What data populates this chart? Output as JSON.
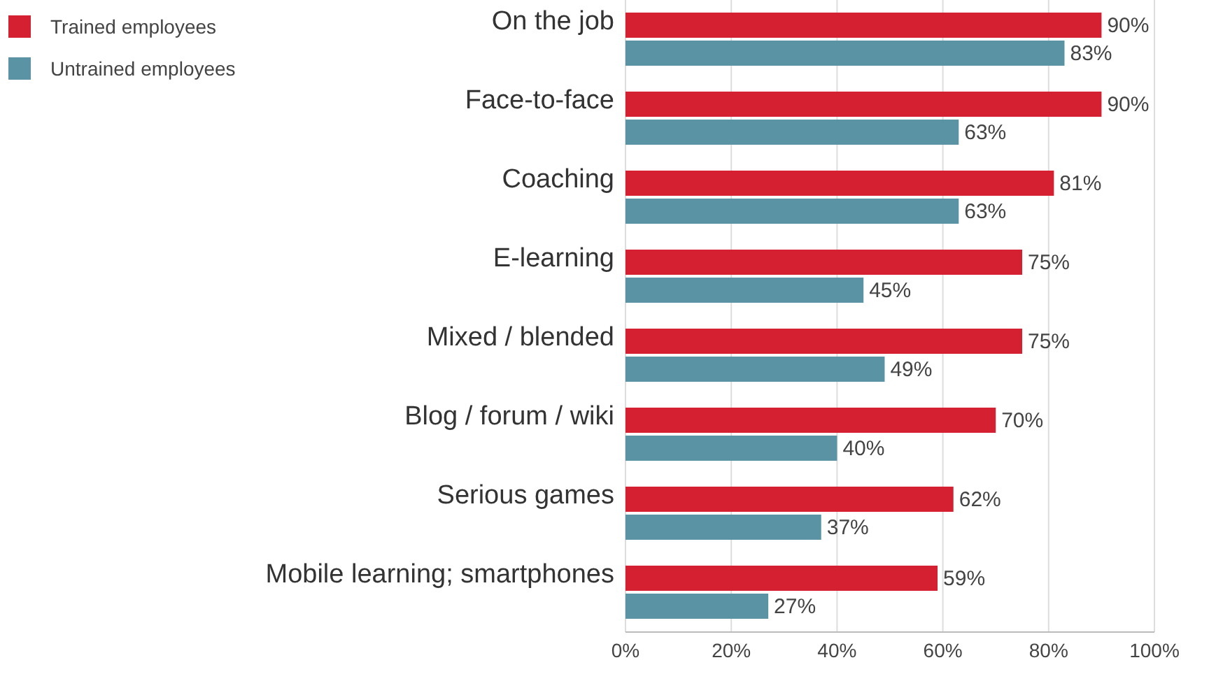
{
  "chart_data": {
    "type": "bar",
    "orientation": "horizontal",
    "categories": [
      "On the job",
      "Face-to-face",
      "Coaching",
      "E-learning",
      "Mixed / blended",
      "Blog / forum / wiki",
      "Serious games",
      "Mobile learning; smartphones"
    ],
    "series": [
      {
        "name": "Trained employees",
        "color": "#d42030",
        "values": [
          90,
          90,
          81,
          75,
          75,
          70,
          62,
          59
        ],
        "value_labels": [
          "90%",
          "90%",
          "81%",
          "75%",
          "75%",
          "70%",
          "62%",
          "59%"
        ]
      },
      {
        "name": "Untrained employees",
        "color": "#5a93a3",
        "values": [
          83,
          63,
          63,
          45,
          49,
          40,
          37,
          27
        ],
        "value_labels": [
          "83%",
          "63%",
          "63%",
          "45%",
          "49%",
          "40%",
          "37%",
          "27%"
        ]
      }
    ],
    "xlim": [
      0,
      100
    ],
    "xticks": [
      {
        "value": 0,
        "label": "0%"
      },
      {
        "value": 20,
        "label": "20%"
      },
      {
        "value": 40,
        "label": "40%"
      },
      {
        "value": 60,
        "label": "60%"
      },
      {
        "value": 80,
        "label": "80%"
      },
      {
        "value": 100,
        "label": "100%"
      }
    ],
    "grid": "x",
    "legend": "top left"
  }
}
